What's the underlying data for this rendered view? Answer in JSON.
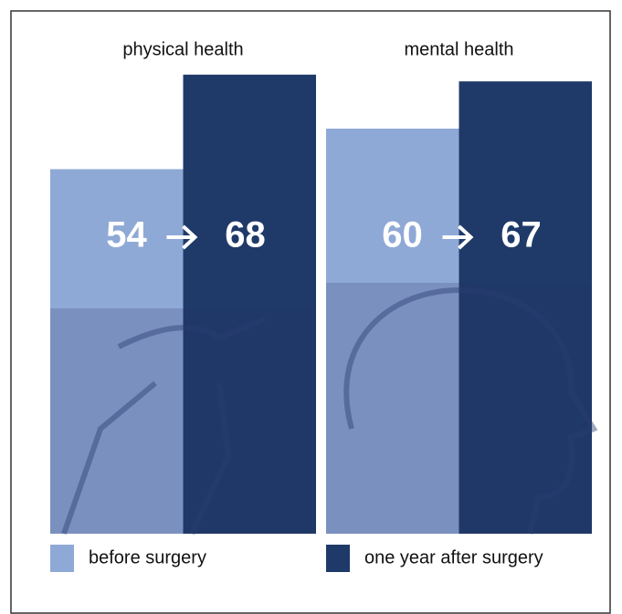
{
  "chart_data": {
    "type": "bar",
    "categories": [
      "physical health",
      "mental health"
    ],
    "series": [
      {
        "name": "before surgery",
        "color": "#8fa9d6",
        "values": [
          54,
          60
        ]
      },
      {
        "name": "one year after surgery",
        "color": "#1f3a68",
        "values": [
          68,
          67
        ]
      }
    ],
    "ylim": [
      0,
      75
    ]
  }
}
